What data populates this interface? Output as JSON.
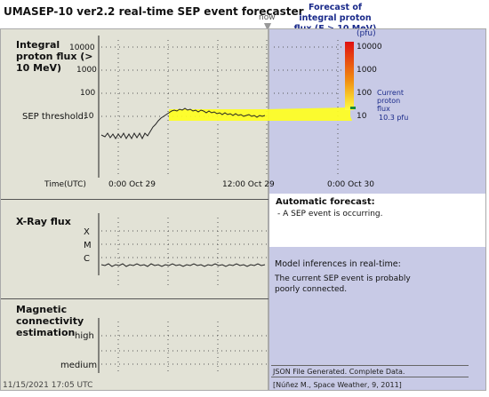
{
  "app_title": "UMASEP-10 ver2.2 real-time SEP event forecaster",
  "now_label": "now",
  "forecast_title": "Forecast of integral proton flux (E > 10 MeV)",
  "proton_panel": {
    "label": "Integral proton flux (> 10 MeV)",
    "unit": "(pfu)",
    "y_ticks": [
      "10000",
      "1000",
      "100",
      "10"
    ],
    "right_ticks": [
      "10000",
      "1000",
      "100",
      "10"
    ],
    "threshold_label": "SEP threshold:",
    "time_label": "Time(UTC)",
    "x_ticks": [
      "0:00   Oct 29",
      "12:00  Oct 29",
      "0:00   Oct 30"
    ],
    "current_label": "Current proton flux",
    "current_value": "10.3 pfu"
  },
  "xray_panel": {
    "label": "X-Ray flux",
    "classes": [
      "X",
      "M",
      "C"
    ]
  },
  "magnetic_panel": {
    "label": "Magnetic connectivity estimation",
    "levels": [
      "high",
      "medium"
    ]
  },
  "automatic_forecast": {
    "title": "Automatic forecast:",
    "bullet": "-  A SEP event is occurring."
  },
  "model_inferences": {
    "title": "Model inferences in real-time:",
    "text": "The current SEP event is probably poorly connected."
  },
  "json_status": "JSON File Generated. Complete Data.",
  "citation": "[Núñez M., Space Weather, 9, 2011]",
  "timestamp": "11/15/2021 17:05 UTC",
  "colors": {
    "left_bg": "#e2e2d6",
    "right_bg": "#c8cae6",
    "threshold": "#ffff20",
    "title_blue": "#1a2a8a"
  }
}
